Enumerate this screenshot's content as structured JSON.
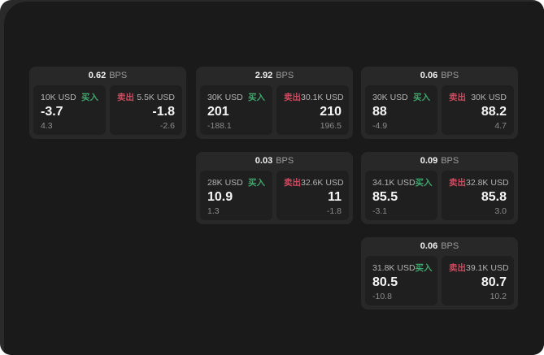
{
  "colors": {
    "backdrop": "#2a2a2a",
    "window_bg": "#1a1a1a",
    "card_bg": "#282828",
    "panel_bg": "#1f1f1f",
    "buy_green": "#3fa56c",
    "sell_red": "#ce4a5f",
    "primary_text": "#f5f5f5",
    "muted_text": "#9b9b9b"
  },
  "labels": {
    "bps": "BPS",
    "buy": "买入",
    "sell": "卖出"
  },
  "cards": [
    {
      "bps": "0.62",
      "buy": {
        "amount": "10K USD",
        "price": "-3.7",
        "delta": "4.3"
      },
      "sell": {
        "amount": "5.5K USD",
        "price": "-1.8",
        "delta": "-2.6"
      }
    },
    {
      "bps": "2.92",
      "buy": {
        "amount": "30K USD",
        "price": "201",
        "delta": "-188.1"
      },
      "sell": {
        "amount": "30.1K USD",
        "price": "210",
        "delta": "196.5"
      }
    },
    {
      "bps": "0.06",
      "buy": {
        "amount": "30K USD",
        "price": "88",
        "delta": "-4.9"
      },
      "sell": {
        "amount": "30K USD",
        "price": "88.2",
        "delta": "4.7"
      }
    },
    {
      "bps": "0.03",
      "buy": {
        "amount": "28K USD",
        "price": "10.9",
        "delta": "1.3"
      },
      "sell": {
        "amount": "32.6K USD",
        "price": "11",
        "delta": "-1.8"
      }
    },
    {
      "bps": "0.09",
      "buy": {
        "amount": "34.1K USD",
        "price": "85.5",
        "delta": "-3.1"
      },
      "sell": {
        "amount": "32.8K USD",
        "price": "85.8",
        "delta": "3.0"
      }
    },
    {
      "bps": "0.06",
      "buy": {
        "amount": "31.8K USD",
        "price": "80.5",
        "delta": "-10.8"
      },
      "sell": {
        "amount": "39.1K USD",
        "price": "80.7",
        "delta": "10.2"
      }
    }
  ]
}
